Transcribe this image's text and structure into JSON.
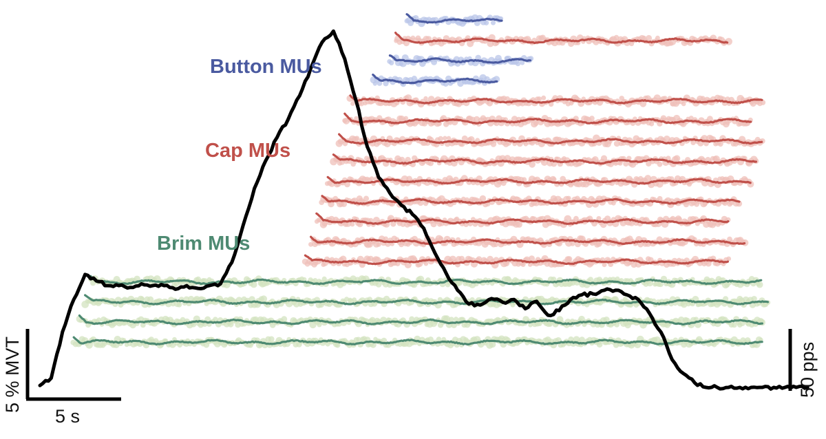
{
  "chart_data": {
    "type": "line",
    "title": "",
    "colors": {
      "button": "#4a5aa0",
      "button_dots": "#b9c5e8",
      "cap": "#c0504a",
      "cap_dots": "#efc0ba",
      "brim": "#4e8a72",
      "brim_dots": "#d3e3c0",
      "force": "#000000"
    },
    "group_labels": {
      "button": "Button MUs",
      "cap": "Cap MUs",
      "brim": "Brim MUs"
    },
    "scale_bars": {
      "force": "5 % MVT",
      "time": "5 s",
      "rate": "50 pps"
    },
    "force_trace": {
      "name": "",
      "t_s": [
        0,
        1,
        2,
        3,
        4,
        5,
        6,
        7,
        8,
        9,
        10,
        11,
        12,
        13,
        14,
        15,
        16,
        17,
        18,
        19,
        20,
        21,
        22,
        23,
        24,
        25,
        26,
        27,
        28,
        29,
        30,
        31,
        32,
        33,
        34,
        35,
        36,
        37,
        38,
        39,
        40,
        41,
        42,
        43,
        44,
        45,
        46,
        47,
        48,
        49,
        50,
        51,
        52,
        53,
        54,
        55,
        56,
        57,
        58,
        59,
        60,
        61,
        62,
        63,
        64,
        65,
        66,
        67,
        68
      ],
      "mvt_pct": [
        0.2,
        1.0,
        6.0,
        9.5,
        12.2,
        11.5,
        11.0,
        11.0,
        10.8,
        11.2,
        11.0,
        11.0,
        10.6,
        11.0,
        10.7,
        11.0,
        11.2,
        13.5,
        17.5,
        21.5,
        24.5,
        27.0,
        29.0,
        31.5,
        34.5,
        37.3,
        38.5,
        35.5,
        31.0,
        26.0,
        22.7,
        21.0,
        19.7,
        18.7,
        17.2,
        14.5,
        12.3,
        10.5,
        9.0,
        8.9,
        9.6,
        9.2,
        9.5,
        8.5,
        9.3,
        7.8,
        8.3,
        9.5,
        10.0,
        10.1,
        10.5,
        10.5,
        10.0,
        9.5,
        8.0,
        6.0,
        3.0,
        1.5,
        0.5,
        0.0,
        0.0,
        0.0,
        0.0,
        0.0,
        0.0,
        0.0,
        0.0,
        0.0,
        0.0
      ]
    },
    "series": [
      {
        "group": "button",
        "onset_s": 32.5,
        "offset_s": 41.0,
        "mean_rate_pps": 24.0
      },
      {
        "group": "cap",
        "onset_s": 31.5,
        "offset_s": 61.0,
        "mean_rate_pps": 20.0
      },
      {
        "group": "button",
        "onset_s": 31.0,
        "offset_s": 43.5,
        "mean_rate_pps": 22.0
      },
      {
        "group": "button",
        "onset_s": 29.5,
        "offset_s": 40.5,
        "mean_rate_pps": 20.0
      },
      {
        "group": "cap",
        "onset_s": 27.5,
        "offset_s": 64.0,
        "mean_rate_pps": 18.0
      },
      {
        "group": "cap",
        "onset_s": 27.0,
        "offset_s": 63.0,
        "mean_rate_pps": 18.0
      },
      {
        "group": "cap",
        "onset_s": 26.5,
        "offset_s": 64.0,
        "mean_rate_pps": 17.0
      },
      {
        "group": "cap",
        "onset_s": 26.0,
        "offset_s": 63.5,
        "mean_rate_pps": 17.0
      },
      {
        "group": "cap",
        "onset_s": 25.5,
        "offset_s": 63.0,
        "mean_rate_pps": 16.0
      },
      {
        "group": "cap",
        "onset_s": 25.0,
        "offset_s": 62.0,
        "mean_rate_pps": 16.0
      },
      {
        "group": "cap",
        "onset_s": 24.5,
        "offset_s": 61.0,
        "mean_rate_pps": 15.0
      },
      {
        "group": "cap",
        "onset_s": 24.0,
        "offset_s": 62.5,
        "mean_rate_pps": 15.0
      },
      {
        "group": "cap",
        "onset_s": 23.5,
        "offset_s": 61.0,
        "mean_rate_pps": 14.0
      },
      {
        "group": "brim",
        "onset_s": 4.5,
        "offset_s": 64.0,
        "mean_rate_pps": 14.0
      },
      {
        "group": "brim",
        "onset_s": 4.0,
        "offset_s": 64.5,
        "mean_rate_pps": 13.0
      },
      {
        "group": "brim",
        "onset_s": 3.5,
        "offset_s": 64.0,
        "mean_rate_pps": 12.0
      },
      {
        "group": "brim",
        "onset_s": 3.0,
        "offset_s": 64.0,
        "mean_rate_pps": 11.0
      }
    ],
    "grid": false,
    "legend": "none"
  }
}
